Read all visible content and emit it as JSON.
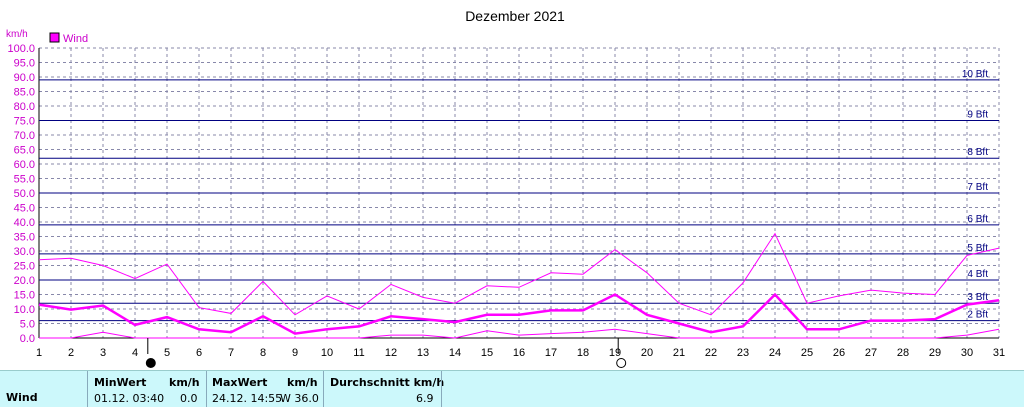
{
  "title": "Dezember 2021",
  "chart_data": {
    "type": "line",
    "title": "Dezember 2021",
    "ylabel": "km/h",
    "ylim": [
      0,
      100
    ],
    "yticks": [
      "0.0",
      "5.0",
      "10.0",
      "15.0",
      "20.0",
      "25.0",
      "30.0",
      "35.0",
      "40.0",
      "45.0",
      "50.0",
      "55.0",
      "60.0",
      "65.0",
      "70.0",
      "75.0",
      "80.0",
      "85.0",
      "90.0",
      "95.0",
      "100.0"
    ],
    "x": [
      1,
      2,
      3,
      4,
      5,
      6,
      7,
      8,
      9,
      10,
      11,
      12,
      13,
      14,
      15,
      16,
      17,
      18,
      19,
      20,
      21,
      22,
      23,
      24,
      25,
      26,
      27,
      28,
      29,
      30,
      31
    ],
    "xlim": [
      1,
      31
    ],
    "legend": "top-left",
    "grid": true,
    "series": [
      {
        "name": "Wind",
        "role": "avg",
        "color": "#ff00ff",
        "values": [
          11.5,
          9.8,
          11.2,
          4.5,
          7.2,
          3.0,
          2.0,
          7.5,
          1.5,
          3.0,
          4.0,
          7.5,
          6.5,
          5.5,
          8.0,
          8.0,
          9.5,
          9.5,
          15.0,
          8.0,
          5.0,
          2.0,
          4.0,
          15.0,
          3.0,
          3.0,
          6.0,
          6.0,
          6.5,
          11.5,
          13.0
        ]
      },
      {
        "role": "max",
        "color": "#ff00ff",
        "values": [
          27.0,
          27.5,
          25.0,
          20.5,
          25.5,
          10.5,
          8.5,
          19.5,
          8.0,
          14.5,
          10.0,
          18.5,
          14.0,
          12.0,
          18.0,
          17.5,
          22.5,
          22.0,
          30.5,
          22.5,
          12.0,
          8.0,
          19.0,
          36.0,
          12.0,
          14.5,
          16.5,
          15.5,
          15.0,
          28.5,
          31.0
        ]
      },
      {
        "role": "min",
        "color": "#ff00ff",
        "values": [
          0.0,
          0.0,
          2.0,
          0.0,
          0.0,
          0.0,
          0.0,
          0.0,
          0.0,
          0.0,
          0.0,
          1.0,
          1.0,
          0.0,
          2.5,
          1.0,
          1.5,
          2.0,
          3.0,
          1.5,
          0.0,
          0.0,
          0.0,
          0.0,
          0.0,
          0.0,
          0.0,
          0.0,
          0.0,
          1.0,
          3.0
        ]
      }
    ],
    "beaufort": [
      {
        "label": "2 Bft",
        "value": 6
      },
      {
        "label": "3 Bft",
        "value": 12
      },
      {
        "label": "4 Bft",
        "value": 20
      },
      {
        "label": "5 Bft",
        "value": 29
      },
      {
        "label": "6 Bft",
        "value": 39
      },
      {
        "label": "7 Bft",
        "value": 50
      },
      {
        "label": "8 Bft",
        "value": 62
      },
      {
        "label": "9 Bft",
        "value": 75
      },
      {
        "label": "10 Bft",
        "value": 89
      }
    ],
    "moon_phases": [
      {
        "day": 4.4,
        "phase": "new-moon"
      },
      {
        "day": 19.1,
        "phase": "full-moon"
      }
    ],
    "colors": {
      "series": "#ff00ff",
      "beaufort": "#000080",
      "grid": "#8888aa",
      "text": "#000000"
    }
  },
  "stats": {
    "row_label": "Wind",
    "min_header": "MinWert",
    "min_unit": "km/h",
    "min_time": "01.12.  03:40",
    "min_value": "0.0",
    "max_header": "MaxWert",
    "max_unit": "km/h",
    "max_time": "24.12.  14:55",
    "max_value": "W 36.0",
    "avg_header": "Durchschnitt km/h",
    "avg_value": "6.9"
  }
}
